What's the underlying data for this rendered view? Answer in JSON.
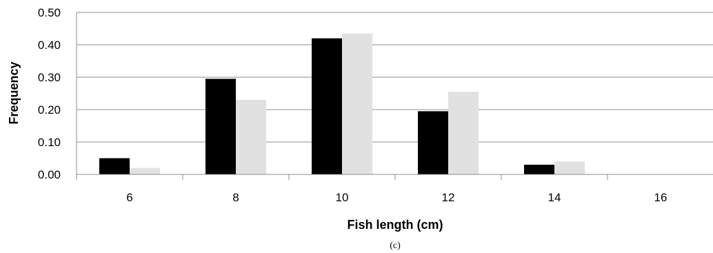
{
  "chart_data": {
    "type": "bar",
    "categories": [
      "6",
      "8",
      "10",
      "12",
      "14",
      "16"
    ],
    "series": [
      {
        "values": [
          0.05,
          0.295,
          0.42,
          0.195,
          0.03,
          0.0
        ],
        "color": "#000000"
      },
      {
        "values": [
          0.02,
          0.23,
          0.435,
          0.255,
          0.04,
          0.0
        ],
        "color": "#e1e1e1"
      }
    ],
    "xlabel": "Fish length (cm)",
    "ylabel": "Frequency",
    "ylim": [
      0,
      0.5
    ],
    "yticks": [
      "0.00",
      "0.10",
      "0.20",
      "0.30",
      "0.40",
      "0.50"
    ],
    "grid": true,
    "legend": "none",
    "caption": "(c)"
  }
}
